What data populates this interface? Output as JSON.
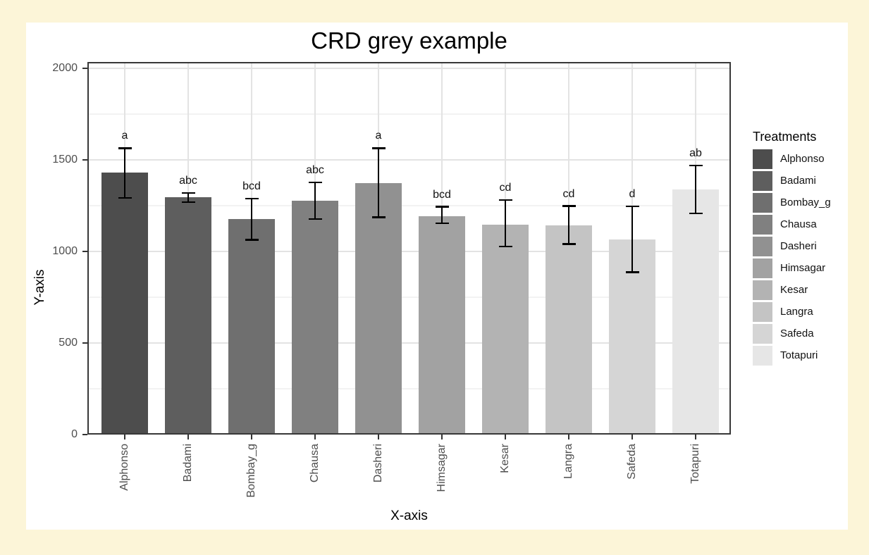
{
  "title": "CRD grey example",
  "axes": {
    "x_label": "X-axis",
    "y_label": "Y-axis",
    "y_ticks": [
      0,
      500,
      1000,
      1500,
      2000
    ],
    "y_minor_ticks": [
      250,
      750,
      1250,
      1750
    ]
  },
  "legend": {
    "title": "Treatments",
    "position": "right"
  },
  "chart_data": {
    "type": "bar",
    "title": "CRD grey example",
    "xlabel": "X-axis",
    "ylabel": "Y-axis",
    "ylim": [
      0,
      2000
    ],
    "grid": true,
    "legend_title": "Treatments",
    "legend_position": "right",
    "categories": [
      "Alphonso",
      "Badami",
      "Bombay_g",
      "Chausa",
      "Dasheri",
      "Himsagar",
      "Kesar",
      "Langra",
      "Safeda",
      "Totapuri"
    ],
    "values": [
      1430,
      1295,
      1176,
      1276,
      1372,
      1192,
      1148,
      1144,
      1065,
      1337
    ],
    "error_low": [
      1292,
      1270,
      1064,
      1176,
      1186,
      1154,
      1026,
      1040,
      886,
      1208
    ],
    "error_high": [
      1564,
      1320,
      1289,
      1376,
      1564,
      1244,
      1280,
      1248,
      1247,
      1470
    ],
    "sig_letters": [
      "a",
      "abc",
      "bcd",
      "abc",
      "a",
      "bcd",
      "cd",
      "cd",
      "d",
      "ab"
    ],
    "bar_colors": [
      "#4d4d4d",
      "#5e5e5e",
      "#6f6f6f",
      "#808080",
      "#919191",
      "#a2a2a2",
      "#b3b3b3",
      "#c4c4c4",
      "#d5d5d5",
      "#e6e6e6"
    ]
  },
  "colors": {
    "page_background": "#FCF5D8",
    "figure_background": "#ffffff",
    "panel_border": "#383838",
    "grid_major": "#e3e3e3",
    "grid_minor": "#f2f2f2",
    "axis_text": "#4d4d4d",
    "error_bar": "#000000"
  }
}
